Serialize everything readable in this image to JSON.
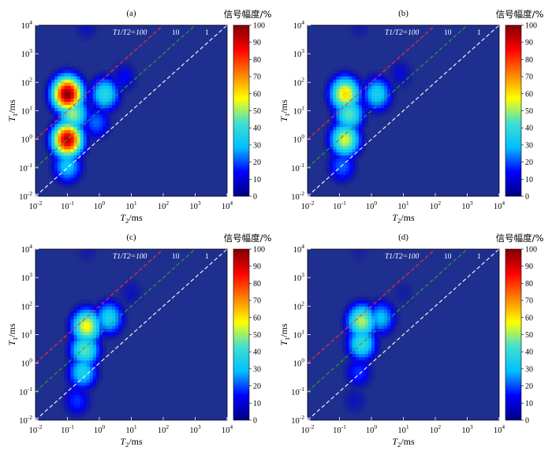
{
  "figure": {
    "colorbar_title": "信号幅度/%",
    "colorbar_ticks": [
      "0",
      "10",
      "20",
      "30",
      "40",
      "50",
      "60",
      "70",
      "80",
      "90",
      "100"
    ],
    "colormap": [
      "#000080",
      "#0000ff",
      "#00bfff",
      "#40e0d0",
      "#ffff00",
      "#ff8000",
      "#ff0000",
      "#800000"
    ],
    "background_color": "#1f2f8f",
    "line_colors": {
      "T1/T2=100": "#ff3030",
      "T1/T2=10": "#22aa22",
      "T1/T2=1": "#ffffff"
    },
    "x_axis_label": "T2/ms",
    "y_axis_label": "T1/ms",
    "x_tick_labels": [
      "10^-2",
      "10^-1",
      "10^0",
      "10^1",
      "10^2",
      "10^3",
      "10^4"
    ],
    "y_tick_labels": [
      "10^-2",
      "10^-1",
      "10^0",
      "10^1",
      "10^2",
      "10^3",
      "10^4"
    ],
    "ratio_labels": {
      "100": "T1/T2=100",
      "10": "10",
      "1": "1"
    }
  },
  "chart_data": [
    {
      "type": "heatmap",
      "panel": "(a)",
      "xlabel": "T2/ms",
      "ylabel": "T1/ms",
      "xscale": "log",
      "yscale": "log",
      "xlim": [
        0.01,
        10000
      ],
      "ylim": [
        0.01,
        10000
      ],
      "colorbar": {
        "title": "信号幅度/%",
        "range": [
          0,
          100
        ]
      },
      "reference_lines": [
        {
          "label": "T1/T2=100",
          "ratio": 100
        },
        {
          "label": "10",
          "ratio": 10
        },
        {
          "label": "1",
          "ratio": 1
        }
      ],
      "peaks": [
        {
          "t2": 0.1,
          "t1": 40,
          "amplitude": 100
        },
        {
          "t2": 0.1,
          "t1": 1.0,
          "amplitude": 95
        },
        {
          "t2": 0.15,
          "t1": 8,
          "amplitude": 50
        },
        {
          "t2": 0.1,
          "t1": 0.12,
          "amplitude": 32
        },
        {
          "t2": 1.5,
          "t1": 40,
          "amplitude": 38
        },
        {
          "t2": 0.8,
          "t1": 4,
          "amplitude": 22
        },
        {
          "t2": 6,
          "t1": 150,
          "amplitude": 14
        },
        {
          "t2": 0.4,
          "t1": 9000,
          "amplitude": 10
        }
      ]
    },
    {
      "type": "heatmap",
      "panel": "(b)",
      "xlabel": "T2/ms",
      "ylabel": "T1/ms",
      "xscale": "log",
      "yscale": "log",
      "xlim": [
        0.01,
        10000
      ],
      "ylim": [
        0.01,
        10000
      ],
      "colorbar": {
        "title": "信号幅度/%",
        "range": [
          0,
          100
        ]
      },
      "reference_lines": [
        {
          "label": "T1/T2=100",
          "ratio": 100
        },
        {
          "label": "10",
          "ratio": 10
        },
        {
          "label": "1",
          "ratio": 1
        }
      ],
      "peaks": [
        {
          "t2": 0.15,
          "t1": 40,
          "amplitude": 62
        },
        {
          "t2": 0.15,
          "t1": 1.0,
          "amplitude": 55
        },
        {
          "t2": 0.2,
          "t1": 8,
          "amplitude": 45
        },
        {
          "t2": 1.5,
          "t1": 40,
          "amplitude": 35
        },
        {
          "t2": 0.12,
          "t1": 0.12,
          "amplitude": 22
        },
        {
          "t2": 8,
          "t1": 200,
          "amplitude": 12
        },
        {
          "t2": 0.4,
          "t1": 9000,
          "amplitude": 8
        }
      ]
    },
    {
      "type": "heatmap",
      "panel": "(c)",
      "xlabel": "T2/ms",
      "ylabel": "T1/ms",
      "xscale": "log",
      "yscale": "log",
      "xlim": [
        0.01,
        10000
      ],
      "ylim": [
        0.01,
        10000
      ],
      "colorbar": {
        "title": "信号幅度/%",
        "range": [
          0,
          100
        ]
      },
      "reference_lines": [
        {
          "label": "T1/T2=100",
          "ratio": 100
        },
        {
          "label": "10",
          "ratio": 10
        },
        {
          "label": "1",
          "ratio": 1
        }
      ],
      "peaks": [
        {
          "t2": 0.4,
          "t1": 20,
          "amplitude": 58
        },
        {
          "t2": 0.35,
          "t1": 3,
          "amplitude": 45
        },
        {
          "t2": 0.3,
          "t1": 0.5,
          "amplitude": 35
        },
        {
          "t2": 2,
          "t1": 40,
          "amplitude": 35
        },
        {
          "t2": 0.2,
          "t1": 0.05,
          "amplitude": 18
        },
        {
          "t2": 10,
          "t1": 300,
          "amplitude": 10
        },
        {
          "t2": 0.4,
          "t1": 9000,
          "amplitude": 8
        }
      ]
    },
    {
      "type": "heatmap",
      "panel": "(d)",
      "xlabel": "T2/ms",
      "ylabel": "T1/ms",
      "xscale": "log",
      "yscale": "log",
      "xlim": [
        0.01,
        10000
      ],
      "ylim": [
        0.01,
        10000
      ],
      "colorbar": {
        "title": "信号幅度/%",
        "range": [
          0,
          100
        ]
      },
      "reference_lines": [
        {
          "label": "T1/T2=100",
          "ratio": 100
        },
        {
          "label": "10",
          "ratio": 10
        },
        {
          "label": "1",
          "ratio": 1
        }
      ],
      "peaks": [
        {
          "t2": 0.5,
          "t1": 30,
          "amplitude": 52
        },
        {
          "t2": 0.5,
          "t1": 5,
          "amplitude": 40
        },
        {
          "t2": 2,
          "t1": 40,
          "amplitude": 30
        },
        {
          "t2": 0.4,
          "t1": 0.5,
          "amplitude": 18
        },
        {
          "t2": 0.3,
          "t1": 0.05,
          "amplitude": 10
        },
        {
          "t2": 10,
          "t1": 300,
          "amplitude": 8
        },
        {
          "t2": 0.4,
          "t1": 9000,
          "amplitude": 7
        }
      ]
    }
  ]
}
